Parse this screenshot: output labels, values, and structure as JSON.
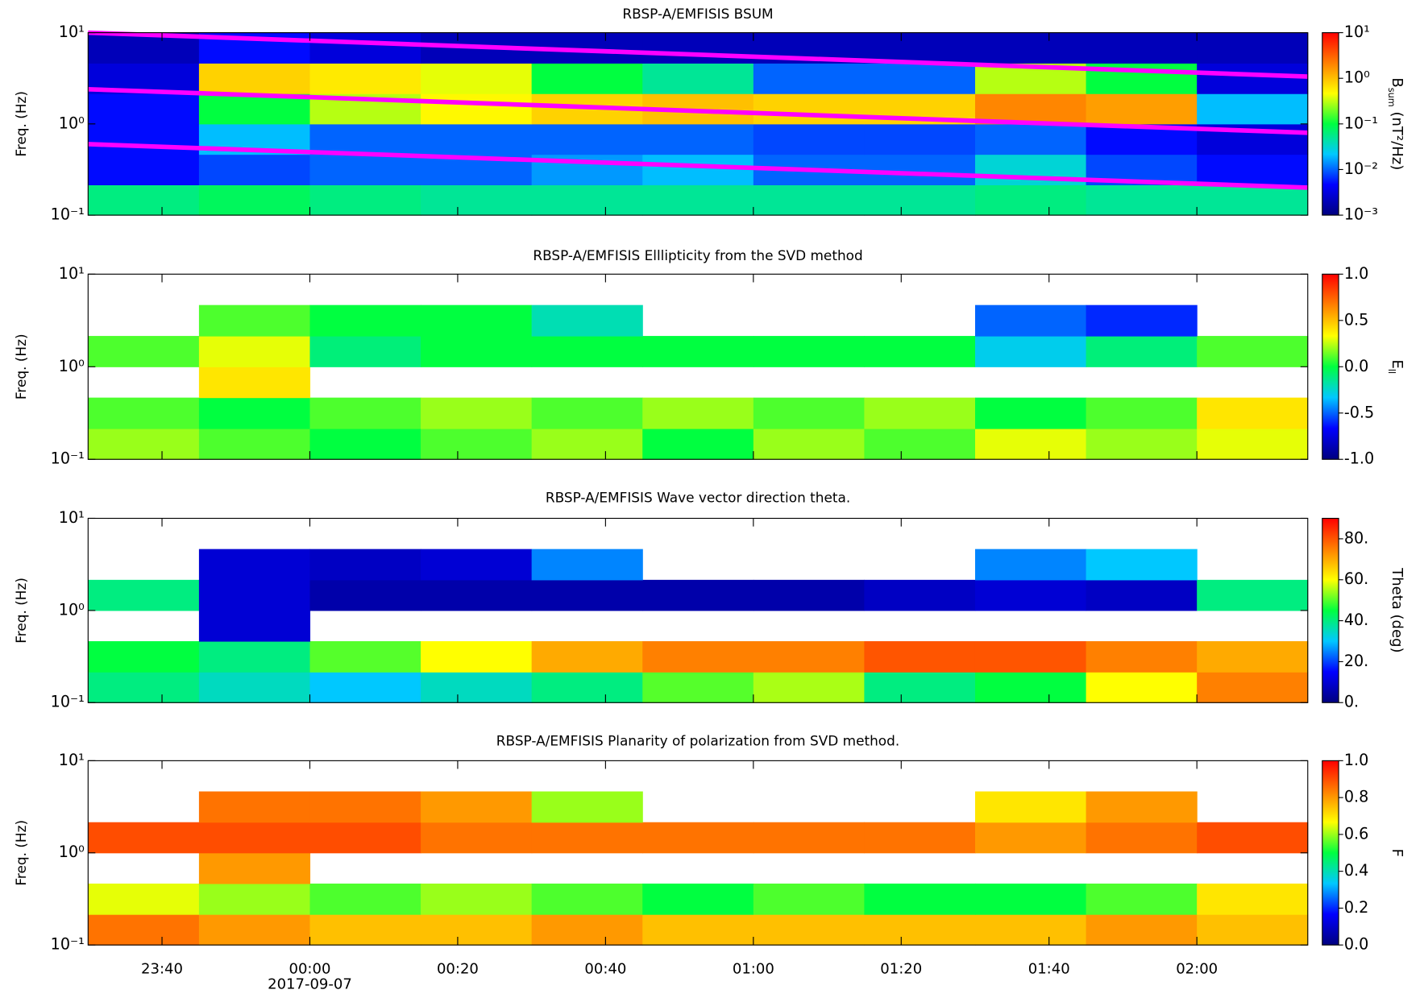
{
  "chart_data": [
    {
      "type": "heatmap",
      "title": "RBSP-A/EMFISIS  BSUM",
      "ylabel": "Freq. (Hz)",
      "cbar_label": "B",
      "cbar_label_sub": "sum",
      "cbar_label_tail": " (nT²/Hz)",
      "log_y": true,
      "ylim": [
        0.1,
        10
      ],
      "yticks": [
        {
          "value": 10,
          "label": "10¹"
        },
        {
          "value": 1,
          "label": "10⁰"
        },
        {
          "value": 0.1,
          "label": "10⁻¹"
        }
      ],
      "xlim": [
        -30,
        135
      ],
      "x_bins": [
        -30,
        -15,
        0,
        15,
        30,
        45,
        60,
        75,
        90,
        105,
        120,
        135
      ],
      "y_bins": [
        0.1,
        0.215,
        0.464,
        1,
        2.15,
        4.64,
        10
      ],
      "z": [
        [
          0.06,
          0.08,
          0.06,
          0.05,
          0.05,
          0.05,
          0.05,
          0.05,
          0.06,
          0.05,
          0.05
        ],
        [
          0.005,
          0.008,
          0.01,
          0.01,
          0.015,
          0.02,
          0.01,
          0.01,
          0.03,
          0.008,
          0.005
        ],
        [
          0.005,
          0.02,
          0.01,
          0.01,
          0.01,
          0.01,
          0.008,
          0.008,
          0.01,
          0.005,
          0.003
        ],
        [
          0.005,
          0.1,
          0.3,
          0.5,
          0.8,
          1,
          0.8,
          0.8,
          2,
          1.5,
          0.02
        ],
        [
          0.003,
          0.8,
          0.6,
          0.4,
          0.1,
          0.05,
          0.01,
          0.01,
          0.3,
          0.1,
          0.003
        ],
        [
          0.002,
          0.005,
          0.003,
          0.002,
          0.002,
          0.002,
          0.002,
          0.002,
          0.002,
          0.002,
          0.002
        ]
      ],
      "log_color": true,
      "clim": [
        0.001,
        10
      ],
      "cbar_ticks": [
        {
          "value": 10,
          "label": "10¹"
        },
        {
          "value": 1,
          "label": "10⁰"
        },
        {
          "value": 0.1,
          "label": "10⁻¹"
        },
        {
          "value": 0.01,
          "label": "10⁻²"
        },
        {
          "value": 0.001,
          "label": "10⁻³"
        }
      ],
      "colormap": [
        "#00007f",
        "#0000ff",
        "#00c8ff",
        "#00ff40",
        "#ffff00",
        "#ff8000",
        "#ff0000"
      ],
      "overlays": [
        {
          "color": "#ff00ff",
          "x": [
            -30,
            135
          ],
          "values": [
            10,
            3.3
          ]
        },
        {
          "color": "#ff00ff",
          "x": [
            -30,
            135
          ],
          "values": [
            2.4,
            0.8
          ]
        },
        {
          "color": "#ff00ff",
          "x": [
            -30,
            135
          ],
          "values": [
            0.6,
            0.2
          ]
        }
      ]
    },
    {
      "type": "heatmap",
      "title": "RBSP-A/EMFISIS  Elllipticity from the SVD method",
      "ylabel": "Freq. (Hz)",
      "cbar_label": "E",
      "cbar_label_sub": "ll",
      "log_y": true,
      "ylim": [
        0.1,
        10
      ],
      "yticks": [
        {
          "value": 10,
          "label": "10¹"
        },
        {
          "value": 1,
          "label": "10⁰"
        },
        {
          "value": 0.1,
          "label": "10⁻¹"
        }
      ],
      "xlim": [
        -30,
        135
      ],
      "x_bins": [
        -30,
        -15,
        0,
        15,
        30,
        45,
        60,
        75,
        90,
        105,
        120,
        135
      ],
      "y_bins": [
        0.1,
        0.215,
        0.464,
        1,
        2.15,
        4.64,
        10
      ],
      "z": [
        [
          0.2,
          0.1,
          0.0,
          0.1,
          0.2,
          0.0,
          0.2,
          0.1,
          0.3,
          0.2,
          0.3
        ],
        [
          0.1,
          0.0,
          0.1,
          0.2,
          0.1,
          0.2,
          0.1,
          0.2,
          0.0,
          0.1,
          0.4
        ],
        [
          null,
          0.4,
          null,
          null,
          null,
          null,
          null,
          null,
          null,
          null,
          null
        ],
        [
          0.1,
          0.3,
          -0.1,
          0.0,
          0.0,
          0.0,
          0.0,
          0.0,
          -0.3,
          -0.1,
          0.1
        ],
        [
          null,
          0.1,
          0.0,
          0.0,
          -0.2,
          null,
          null,
          null,
          -0.5,
          -0.6,
          null
        ],
        [
          null,
          null,
          null,
          null,
          null,
          null,
          null,
          null,
          null,
          null,
          null
        ]
      ],
      "log_color": false,
      "clim": [
        -1,
        1
      ],
      "cbar_ticks": [
        {
          "value": 1,
          "label": "1.0"
        },
        0.5,
        {
          "value": 0,
          "label": "0.0"
        },
        -0.5,
        {
          "value": -1,
          "label": "-1.0"
        }
      ],
      "colormap": [
        "#00007f",
        "#0000ff",
        "#00c8ff",
        "#00ff40",
        "#ffff00",
        "#ff8000",
        "#ff0000"
      ]
    },
    {
      "type": "heatmap",
      "title": "RBSP-A/EMFISIS  Wave vector direction theta.",
      "ylabel": "Freq. (Hz)",
      "cbar_label": "Theta (deg)",
      "log_y": true,
      "ylim": [
        0.1,
        10
      ],
      "yticks": [
        {
          "value": 10,
          "label": "10¹"
        },
        {
          "value": 1,
          "label": "10⁰"
        },
        {
          "value": 0.1,
          "label": "10⁻¹"
        }
      ],
      "xlim": [
        -30,
        135
      ],
      "x_bins": [
        -30,
        -15,
        0,
        15,
        30,
        45,
        60,
        75,
        90,
        105,
        120,
        135
      ],
      "y_bins": [
        0.1,
        0.215,
        0.464,
        1,
        2.15,
        4.64,
        10
      ],
      "z": [
        [
          40,
          35,
          30,
          35,
          40,
          50,
          55,
          40,
          45,
          60,
          75
        ],
        [
          45,
          40,
          50,
          60,
          70,
          75,
          75,
          80,
          80,
          75,
          70
        ],
        [
          null,
          10,
          null,
          null,
          null,
          null,
          null,
          null,
          null,
          null,
          null
        ],
        [
          40,
          10,
          5,
          5,
          5,
          5,
          5,
          8,
          10,
          8,
          40
        ],
        [
          null,
          10,
          8,
          10,
          25,
          null,
          null,
          null,
          25,
          30,
          null
        ],
        [
          null,
          null,
          null,
          null,
          null,
          null,
          null,
          null,
          null,
          null,
          null
        ]
      ],
      "log_color": false,
      "clim": [
        0,
        90
      ],
      "cbar_ticks": [
        {
          "value": 80,
          "label": "80."
        },
        {
          "value": 60,
          "label": "60."
        },
        {
          "value": 40,
          "label": "40."
        },
        {
          "value": 20,
          "label": "20."
        },
        {
          "value": 0,
          "label": "0."
        }
      ],
      "colormap": [
        "#00007f",
        "#0000ff",
        "#00c8ff",
        "#00ff40",
        "#ffff00",
        "#ff8000",
        "#ff0000"
      ]
    },
    {
      "type": "heatmap",
      "title": "RBSP-A/EMFISIS  Planarity of polarization from SVD method.",
      "ylabel": "Freq. (Hz)",
      "cbar_label": "F",
      "log_y": true,
      "ylim": [
        0.1,
        10
      ],
      "yticks": [
        {
          "value": 10,
          "label": "10¹"
        },
        {
          "value": 1,
          "label": "10⁰"
        },
        {
          "value": 0.1,
          "label": "10⁻¹"
        }
      ],
      "xlim": [
        -30,
        135
      ],
      "xticks": [
        {
          "value": -20,
          "label": "23:40"
        },
        {
          "value": 0,
          "label": "00:00"
        },
        {
          "value": 20,
          "label": "00:20"
        },
        {
          "value": 40,
          "label": "00:40"
        },
        {
          "value": 60,
          "label": "01:00"
        },
        {
          "value": 80,
          "label": "01:20"
        },
        {
          "value": 100,
          "label": "01:40"
        },
        {
          "value": 120,
          "label": "02:00"
        }
      ],
      "x_date_label": "2017-09-07",
      "x_bins": [
        -30,
        -15,
        0,
        15,
        30,
        45,
        60,
        75,
        90,
        105,
        120,
        135
      ],
      "y_bins": [
        0.1,
        0.215,
        0.464,
        1,
        2.15,
        4.64,
        10
      ],
      "z": [
        [
          0.85,
          0.8,
          0.75,
          0.75,
          0.8,
          0.75,
          0.75,
          0.75,
          0.75,
          0.8,
          0.75
        ],
        [
          0.65,
          0.6,
          0.55,
          0.6,
          0.55,
          0.5,
          0.55,
          0.5,
          0.5,
          0.55,
          0.7
        ],
        [
          null,
          0.8,
          null,
          null,
          null,
          null,
          null,
          null,
          null,
          null,
          null
        ],
        [
          0.9,
          0.9,
          0.9,
          0.85,
          0.85,
          0.85,
          0.85,
          0.85,
          0.8,
          0.85,
          0.9
        ],
        [
          null,
          0.85,
          0.85,
          0.8,
          0.6,
          null,
          null,
          null,
          0.7,
          0.8,
          null
        ],
        [
          null,
          null,
          null,
          null,
          null,
          null,
          null,
          null,
          null,
          null,
          null
        ]
      ],
      "log_color": false,
      "clim": [
        0,
        1
      ],
      "cbar_ticks": [
        {
          "value": 1,
          "label": "1.0"
        },
        0.8,
        0.6,
        0.4,
        0.2,
        {
          "value": 0,
          "label": "0.0"
        }
      ],
      "colormap": [
        "#00007f",
        "#0000ff",
        "#00c8ff",
        "#00ff40",
        "#ffff00",
        "#ff8000",
        "#ff0000"
      ]
    }
  ]
}
